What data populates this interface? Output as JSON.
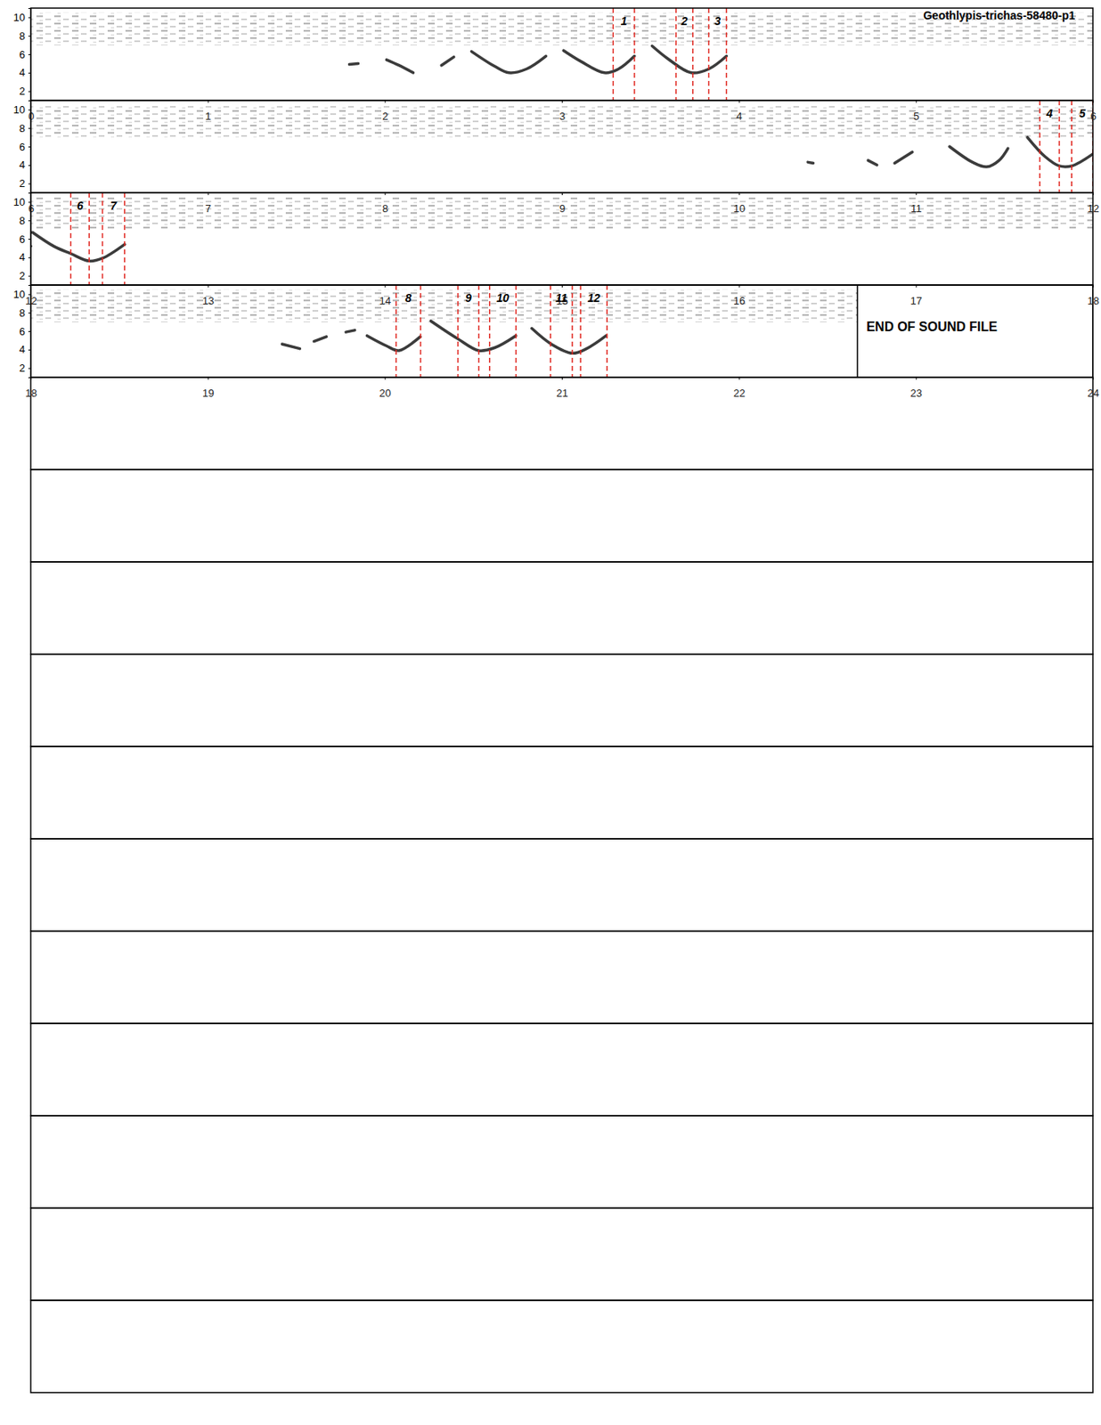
{
  "chart_data": {
    "type": "spectrogram",
    "title": "Geothlypis-trichas-58480-p1",
    "ylim": [
      1,
      11
    ],
    "yticks": [
      2,
      4,
      6,
      8,
      10
    ],
    "panels": [
      {
        "xlim": [
          0,
          6
        ],
        "xticks": [
          0,
          1,
          2,
          3,
          4,
          5,
          6
        ]
      },
      {
        "xlim": [
          6,
          12
        ],
        "xticks": [
          6,
          7,
          8,
          9,
          10,
          11,
          12
        ]
      },
      {
        "xlim": [
          12,
          18
        ],
        "xticks": [
          12,
          13,
          14,
          15,
          16,
          17,
          18
        ]
      },
      {
        "xlim": [
          18,
          24
        ],
        "xticks": [
          18,
          19,
          20,
          21,
          22,
          23,
          24
        ]
      }
    ],
    "empty_panels": 11,
    "noise_band": {
      "t": [
        0,
        22.67
      ],
      "f": [
        7,
        10.5
      ]
    },
    "traces": [
      {
        "t": [
          1.8,
          1.85
        ],
        "f": [
          4.9,
          5.0
        ]
      },
      {
        "t": [
          2.01,
          2.08,
          2.16
        ],
        "f": [
          5.4,
          4.8,
          4.0
        ]
      },
      {
        "t": [
          2.32,
          2.39
        ],
        "f": [
          4.8,
          5.7
        ]
      },
      {
        "t": [
          2.49,
          2.62,
          2.7,
          2.8,
          2.91
        ],
        "f": [
          6.3,
          4.7,
          4.0,
          4.4,
          5.8
        ]
      },
      {
        "t": [
          3.01,
          3.11,
          3.24,
          3.32,
          3.41
        ],
        "f": [
          6.4,
          5.2,
          4.0,
          4.4,
          5.8
        ]
      },
      {
        "t": [
          3.51,
          3.6,
          3.73,
          3.83,
          3.93
        ],
        "f": [
          6.9,
          5.5,
          4.0,
          4.4,
          5.8
        ]
      },
      {
        "t": [
          10.39,
          10.42
        ],
        "f": [
          4.3,
          4.2
        ]
      },
      {
        "t": [
          10.73,
          10.78
        ],
        "f": [
          4.5,
          4.0
        ]
      },
      {
        "t": [
          10.88,
          10.98
        ],
        "f": [
          4.2,
          5.4
        ]
      },
      {
        "t": [
          11.19,
          11.32,
          11.4,
          11.47,
          11.52
        ],
        "f": [
          6.0,
          4.3,
          3.8,
          4.5,
          5.8
        ]
      },
      {
        "t": [
          11.63,
          11.73,
          11.81,
          11.88,
          12.0
        ],
        "f": [
          7.0,
          4.9,
          3.9,
          3.9,
          5.2
        ]
      },
      {
        "t": [
          12.01,
          12.13,
          12.226,
          12.33,
          12.405,
          12.53
        ],
        "f": [
          6.7,
          5.2,
          4.4,
          3.6,
          3.9,
          5.4
        ]
      },
      {
        "t": [
          19.42,
          19.52
        ],
        "f": [
          4.6,
          4.1
        ]
      },
      {
        "t": [
          19.6,
          19.67
        ],
        "f": [
          4.9,
          5.4
        ]
      },
      {
        "t": [
          19.78,
          19.83
        ],
        "f": [
          5.9,
          6.1
        ]
      },
      {
        "t": [
          19.9,
          20.01,
          20.08,
          20.2
        ],
        "f": [
          5.5,
          4.4,
          3.9,
          5.4
        ]
      },
      {
        "t": [
          20.26,
          20.41,
          20.53,
          20.62,
          20.74
        ],
        "f": [
          7.1,
          5.2,
          3.9,
          4.2,
          5.5
        ]
      },
      {
        "t": [
          20.83,
          20.94,
          21.06,
          21.14,
          21.25
        ],
        "f": [
          6.3,
          4.6,
          3.6,
          4.1,
          5.5
        ]
      }
    ],
    "syllables": [
      {
        "label": "1",
        "start": 3.29,
        "end": 3.41
      },
      {
        "label": "2",
        "start": 3.645,
        "end": 3.74
      },
      {
        "label": "3",
        "start": 3.83,
        "end": 3.93
      },
      {
        "label": "4",
        "start": 11.7,
        "end": 11.81
      },
      {
        "label": "5",
        "start": 11.88,
        "end": 12.0
      },
      {
        "label": "6",
        "start": 12.226,
        "end": 12.33
      },
      {
        "label": "7",
        "start": 12.405,
        "end": 12.53
      },
      {
        "label": "8",
        "start": 20.064,
        "end": 20.202
      },
      {
        "label": "9",
        "start": 20.413,
        "end": 20.531
      },
      {
        "label": "10",
        "start": 20.592,
        "end": 20.741
      },
      {
        "label": "11",
        "start": 20.936,
        "end": 21.059
      },
      {
        "label": "12",
        "start": 21.106,
        "end": 21.255
      }
    ],
    "end_of_file": {
      "time": 22.67,
      "label": "END OF SOUND FILE"
    }
  }
}
